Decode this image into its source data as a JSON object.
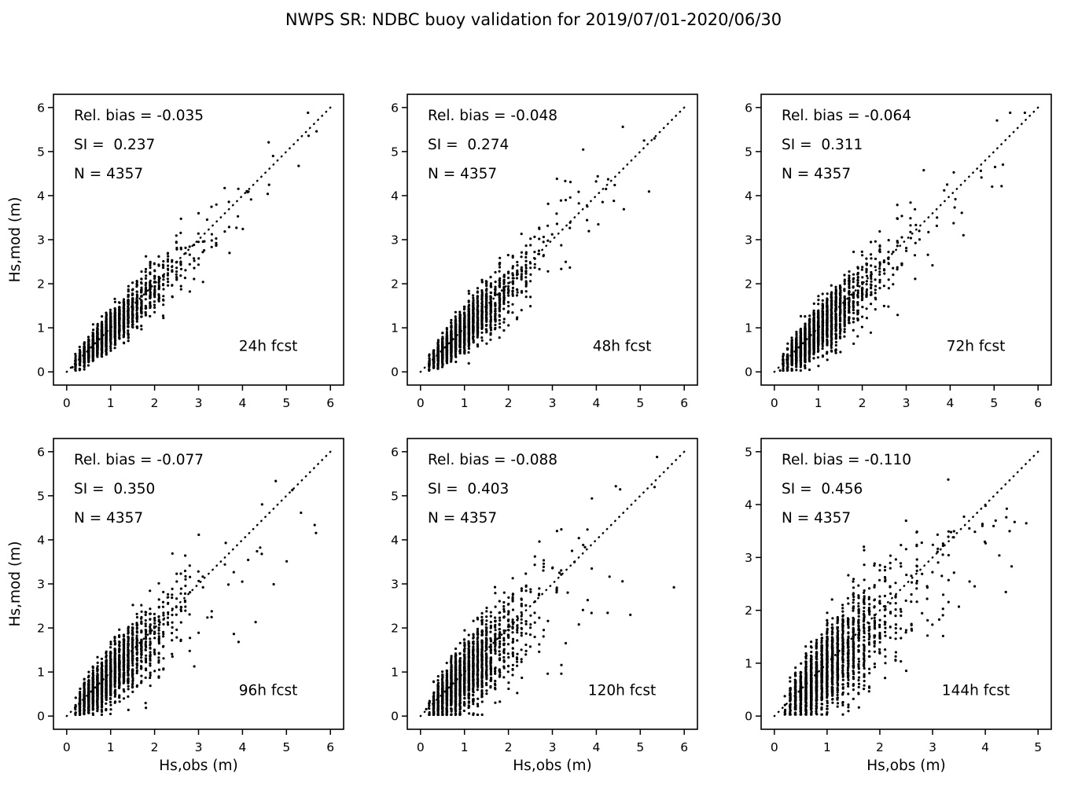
{
  "title": "NWPS SR: NDBC buoy validation for 2019/07/01-2020/06/30",
  "colors": {
    "background": "#ffffff",
    "foreground": "#000000",
    "marker": "#000000",
    "identity_line": "#000000"
  },
  "chart_data": {
    "type": "scatter",
    "grid": false,
    "layout": "2 rows x 3 columns",
    "xlabel": "Hs,obs (m)",
    "ylabel": "Hs,mod (m)",
    "identity_line": "dotted 1:1 reference line from origin to axis max",
    "synthesis": {
      "note": "each panel depicts N=4357 buoy obs/model Hs pairs; point cloud reproduced from the printed relative bias and scatter index",
      "obs_median_m": 0.9,
      "obs_lognormal_sigma": 0.52,
      "noise_base": 0.25,
      "noise_slope": 0.55,
      "points_rendered": 2100,
      "storm_points": 14,
      "x_quantize_m": 0.1
    },
    "subplots": [
      {
        "fcst_label": "24h fcst",
        "rel_bias": -0.035,
        "si": 0.237,
        "n": 4357,
        "stats_lines": [
          "Rel. bias = -0.035",
          "SI =  0.237",
          "N = 4357"
        ],
        "xlim": [
          0,
          6
        ],
        "ylim": [
          0,
          6
        ],
        "xticks": [
          0,
          1,
          2,
          3,
          4,
          5,
          6
        ],
        "yticks": [
          0,
          1,
          2,
          3,
          4,
          5,
          6
        ],
        "seed": 11,
        "y_softcap": null
      },
      {
        "fcst_label": "48h fcst",
        "rel_bias": -0.048,
        "si": 0.274,
        "n": 4357,
        "stats_lines": [
          "Rel. bias = -0.048",
          "SI =  0.274",
          "N = 4357"
        ],
        "xlim": [
          0,
          6
        ],
        "ylim": [
          0,
          6
        ],
        "xticks": [
          0,
          1,
          2,
          3,
          4,
          5,
          6
        ],
        "yticks": [
          0,
          1,
          2,
          3,
          4,
          5,
          6
        ],
        "seed": 22,
        "y_softcap": null
      },
      {
        "fcst_label": "72h fcst",
        "rel_bias": -0.064,
        "si": 0.311,
        "n": 4357,
        "stats_lines": [
          "Rel. bias = -0.064",
          "SI =  0.311",
          "N = 4357"
        ],
        "xlim": [
          0,
          6
        ],
        "ylim": [
          0,
          6
        ],
        "xticks": [
          0,
          1,
          2,
          3,
          4,
          5,
          6
        ],
        "yticks": [
          0,
          1,
          2,
          3,
          4,
          5,
          6
        ],
        "seed": 33,
        "y_softcap": null
      },
      {
        "fcst_label": "96h fcst",
        "rel_bias": -0.077,
        "si": 0.35,
        "n": 4357,
        "stats_lines": [
          "Rel. bias = -0.077",
          "SI =  0.350",
          "N = 4357"
        ],
        "xlim": [
          0,
          6
        ],
        "ylim": [
          0,
          6
        ],
        "xticks": [
          0,
          1,
          2,
          3,
          4,
          5,
          6
        ],
        "yticks": [
          0,
          1,
          2,
          3,
          4,
          5,
          6
        ],
        "seed": 44,
        "y_softcap": null
      },
      {
        "fcst_label": "120h fcst",
        "rel_bias": -0.088,
        "si": 0.403,
        "n": 4357,
        "stats_lines": [
          "Rel. bias = -0.088",
          "SI =  0.403",
          "N = 4357"
        ],
        "xlim": [
          0,
          6
        ],
        "ylim": [
          0,
          6
        ],
        "xticks": [
          0,
          1,
          2,
          3,
          4,
          5,
          6
        ],
        "yticks": [
          0,
          1,
          2,
          3,
          4,
          5,
          6
        ],
        "seed": 55,
        "y_softcap": null
      },
      {
        "fcst_label": "144h fcst",
        "rel_bias": -0.11,
        "si": 0.456,
        "n": 4357,
        "stats_lines": [
          "Rel. bias = -0.110",
          "SI =  0.456",
          "N = 4357"
        ],
        "xlim": [
          0,
          5
        ],
        "ylim": [
          0,
          5
        ],
        "xticks": [
          0,
          1,
          2,
          3,
          4,
          5
        ],
        "yticks": [
          0,
          1,
          2,
          3,
          4,
          5
        ],
        "seed": 66,
        "y_softcap": 3.2
      }
    ]
  }
}
